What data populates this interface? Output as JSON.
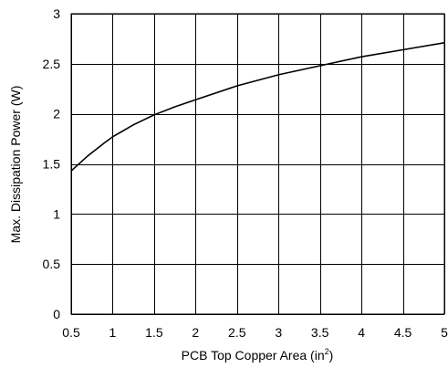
{
  "chart_data": {
    "type": "line",
    "title": "",
    "xlabel": "PCB Top Copper Area (in",
    "xlabel_sup": "2",
    "xlabel_suffix": ")",
    "ylabel": "Max. Dissipation Power (W)",
    "xlim": [
      0.5,
      5
    ],
    "ylim": [
      0,
      3
    ],
    "x_ticks": [
      0.5,
      1,
      1.5,
      2,
      2.5,
      3,
      3.5,
      4,
      4.5,
      5
    ],
    "x_tick_labels": [
      "0.5",
      "1",
      "1.5",
      "2",
      "2.5",
      "3",
      "3.5",
      "4",
      "4.5",
      "5"
    ],
    "y_ticks": [
      0,
      0.5,
      1,
      1.5,
      2,
      2.5,
      3
    ],
    "y_tick_labels": [
      "0",
      "0.5",
      "1",
      "1.5",
      "2",
      "2.5",
      "3"
    ],
    "grid": true,
    "series": [
      {
        "x": [
          0.5,
          0.7,
          0.9,
          1.0,
          1.25,
          1.5,
          1.75,
          2.0,
          2.5,
          3.0,
          3.5,
          4.0,
          4.5,
          5.0
        ],
        "y": [
          1.43,
          1.58,
          1.71,
          1.77,
          1.89,
          1.99,
          2.07,
          2.14,
          2.28,
          2.39,
          2.48,
          2.57,
          2.64,
          2.71
        ]
      }
    ]
  }
}
